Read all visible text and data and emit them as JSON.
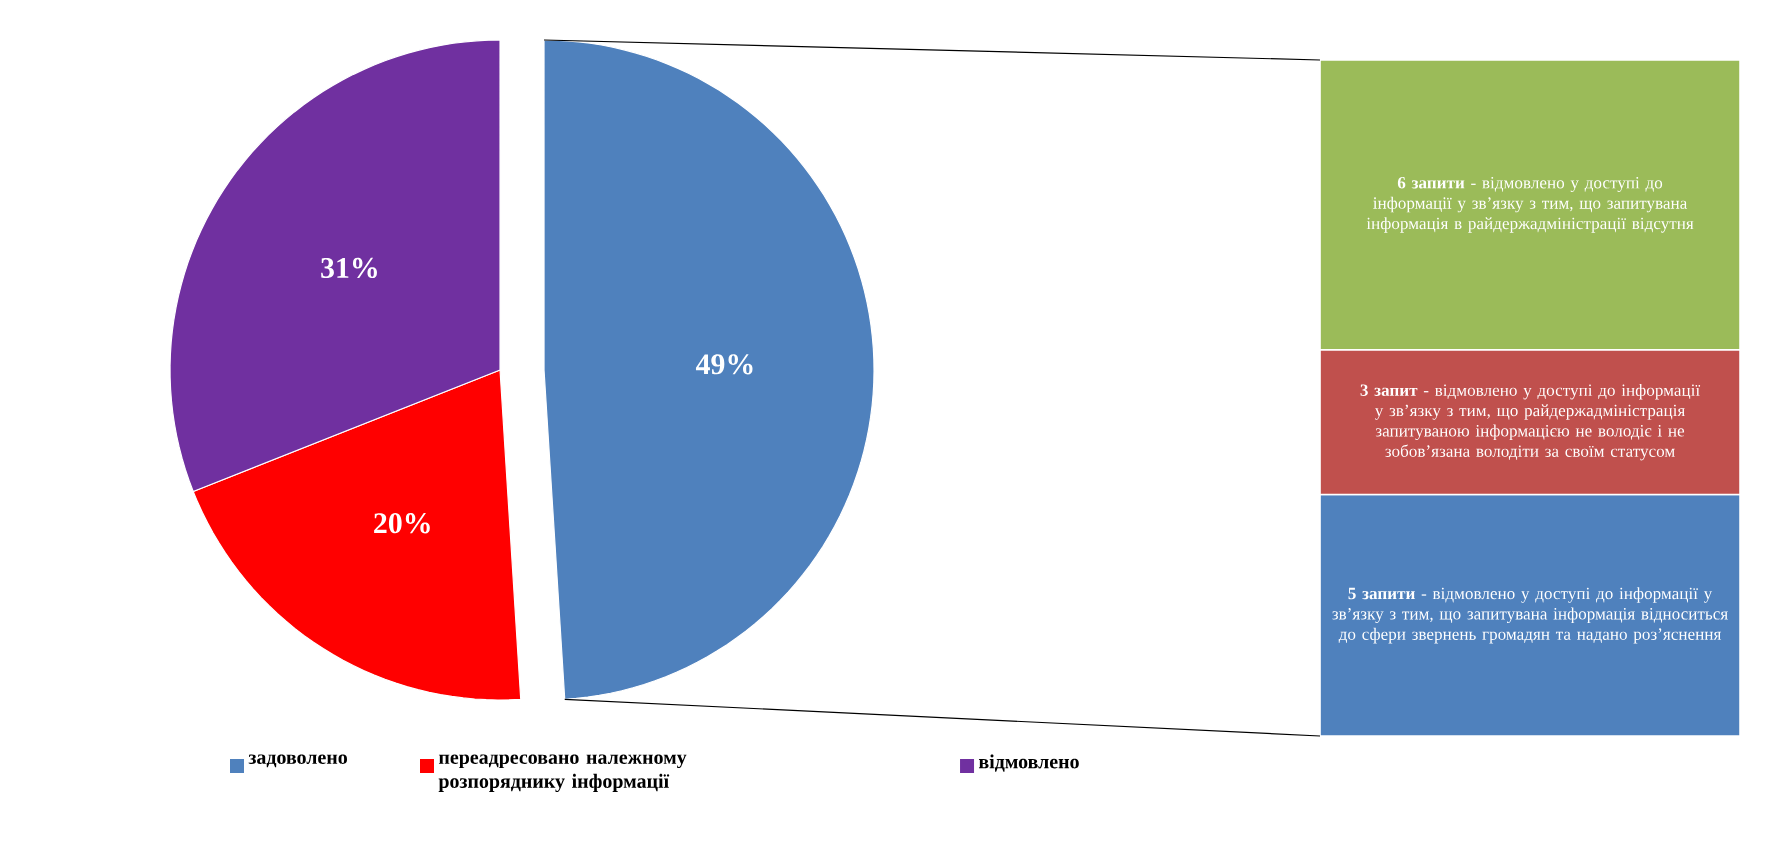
{
  "chart_data": [
    {
      "type": "pie",
      "categories": [
        "задоволено",
        "переадресовано належному розпоряднику інформації",
        "відмовлено"
      ],
      "values": [
        49,
        20,
        31
      ],
      "colors": [
        "#4f81bd",
        "#ff0000",
        "#7030a0"
      ],
      "value_labels": [
        "49%",
        "20%",
        "31%"
      ],
      "legend": "bottom"
    },
    {
      "type": "bar",
      "stacked": true,
      "categories": [
        null
      ],
      "series": [
        {
          "color": "#4f81bd",
          "values": [
            5
          ],
          "value_labels": [
            "**5 запити** - відмовлено у доступі до інформації у зв’язку з тим, що запитувана інформація відноситься до сфери звернень громадян та надано роз’яснення"
          ]
        },
        {
          "color": "#c0504d",
          "values": [
            3
          ],
          "value_labels": [
            "**3 запит** - відмовлено у доступі до інформації у зв’язку з тим, що райдержадміністрація запитуваною інформацією не володіє і не зобов’язана володіти за своїм статусом"
          ]
        },
        {
          "color": "#9bbb59",
          "values": [
            6
          ],
          "value_labels": [
            "**6 запити** - відмовлено у доступі до інформації у зв’язку з тим, що запитувана інформація в райдержадміністрації відсутня"
          ]
        }
      ]
    }
  ]
}
